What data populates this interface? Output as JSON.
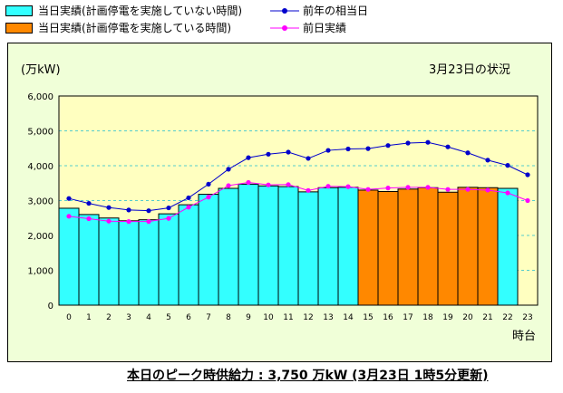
{
  "legend": {
    "not_implemented": "当日実績(計画停電を実施していない時間)",
    "implemented": "当日実績(計画停電を実施している時間)",
    "prev_year": "前年の相当日",
    "prev_day": "前日実績"
  },
  "colors": {
    "not_implemented": "#33ffff",
    "implemented": "#ff8800",
    "prev_year": "#0000cc",
    "prev_day": "#ff00ff",
    "plot_bg": "#ffffc0",
    "frame_bg": "#f0ffd8",
    "grid": "#55cccc"
  },
  "chart_data": {
    "type": "bar",
    "unit_label": "(万kW)",
    "annotation": "3月23日の状況",
    "xlabel": "時台",
    "ylim": [
      0,
      6000
    ],
    "yticks": [
      "0",
      "1,000",
      "2,000",
      "3,000",
      "4,000",
      "5,000",
      "6,000"
    ],
    "grid": true,
    "categories": [
      "0",
      "1",
      "2",
      "3",
      "4",
      "5",
      "6",
      "7",
      "8",
      "9",
      "10",
      "11",
      "12",
      "13",
      "14",
      "15",
      "16",
      "17",
      "18",
      "19",
      "20",
      "21",
      "22",
      "23"
    ],
    "series": [
      {
        "name": "当日実績",
        "type": "bar",
        "values": [
          2780,
          2600,
          2500,
          2420,
          2450,
          2620,
          2880,
          3180,
          3350,
          3470,
          3420,
          3400,
          3250,
          3370,
          3380,
          3300,
          3260,
          3330,
          3370,
          3240,
          3380,
          3370,
          3350,
          null
        ],
        "implemented": [
          false,
          false,
          false,
          false,
          false,
          false,
          false,
          false,
          false,
          false,
          false,
          false,
          false,
          false,
          false,
          true,
          true,
          true,
          true,
          true,
          true,
          true,
          false,
          false
        ]
      },
      {
        "name": "前年の相当日",
        "type": "line",
        "values": [
          3060,
          2920,
          2800,
          2730,
          2710,
          2790,
          3080,
          3470,
          3900,
          4230,
          4330,
          4390,
          4210,
          4440,
          4480,
          4490,
          4580,
          4650,
          4670,
          4540,
          4370,
          4160,
          4010,
          3740
        ]
      },
      {
        "name": "前日実績",
        "type": "line",
        "values": [
          2550,
          2480,
          2410,
          2400,
          2400,
          2490,
          2810,
          3100,
          3430,
          3520,
          3450,
          3460,
          3290,
          3410,
          3400,
          3320,
          3360,
          3380,
          3380,
          3320,
          3320,
          3300,
          3220,
          3000
        ]
      }
    ]
  },
  "footer": "本日のピーク時供給力 : 3,750 万kW (3月23日 1時5分更新)"
}
